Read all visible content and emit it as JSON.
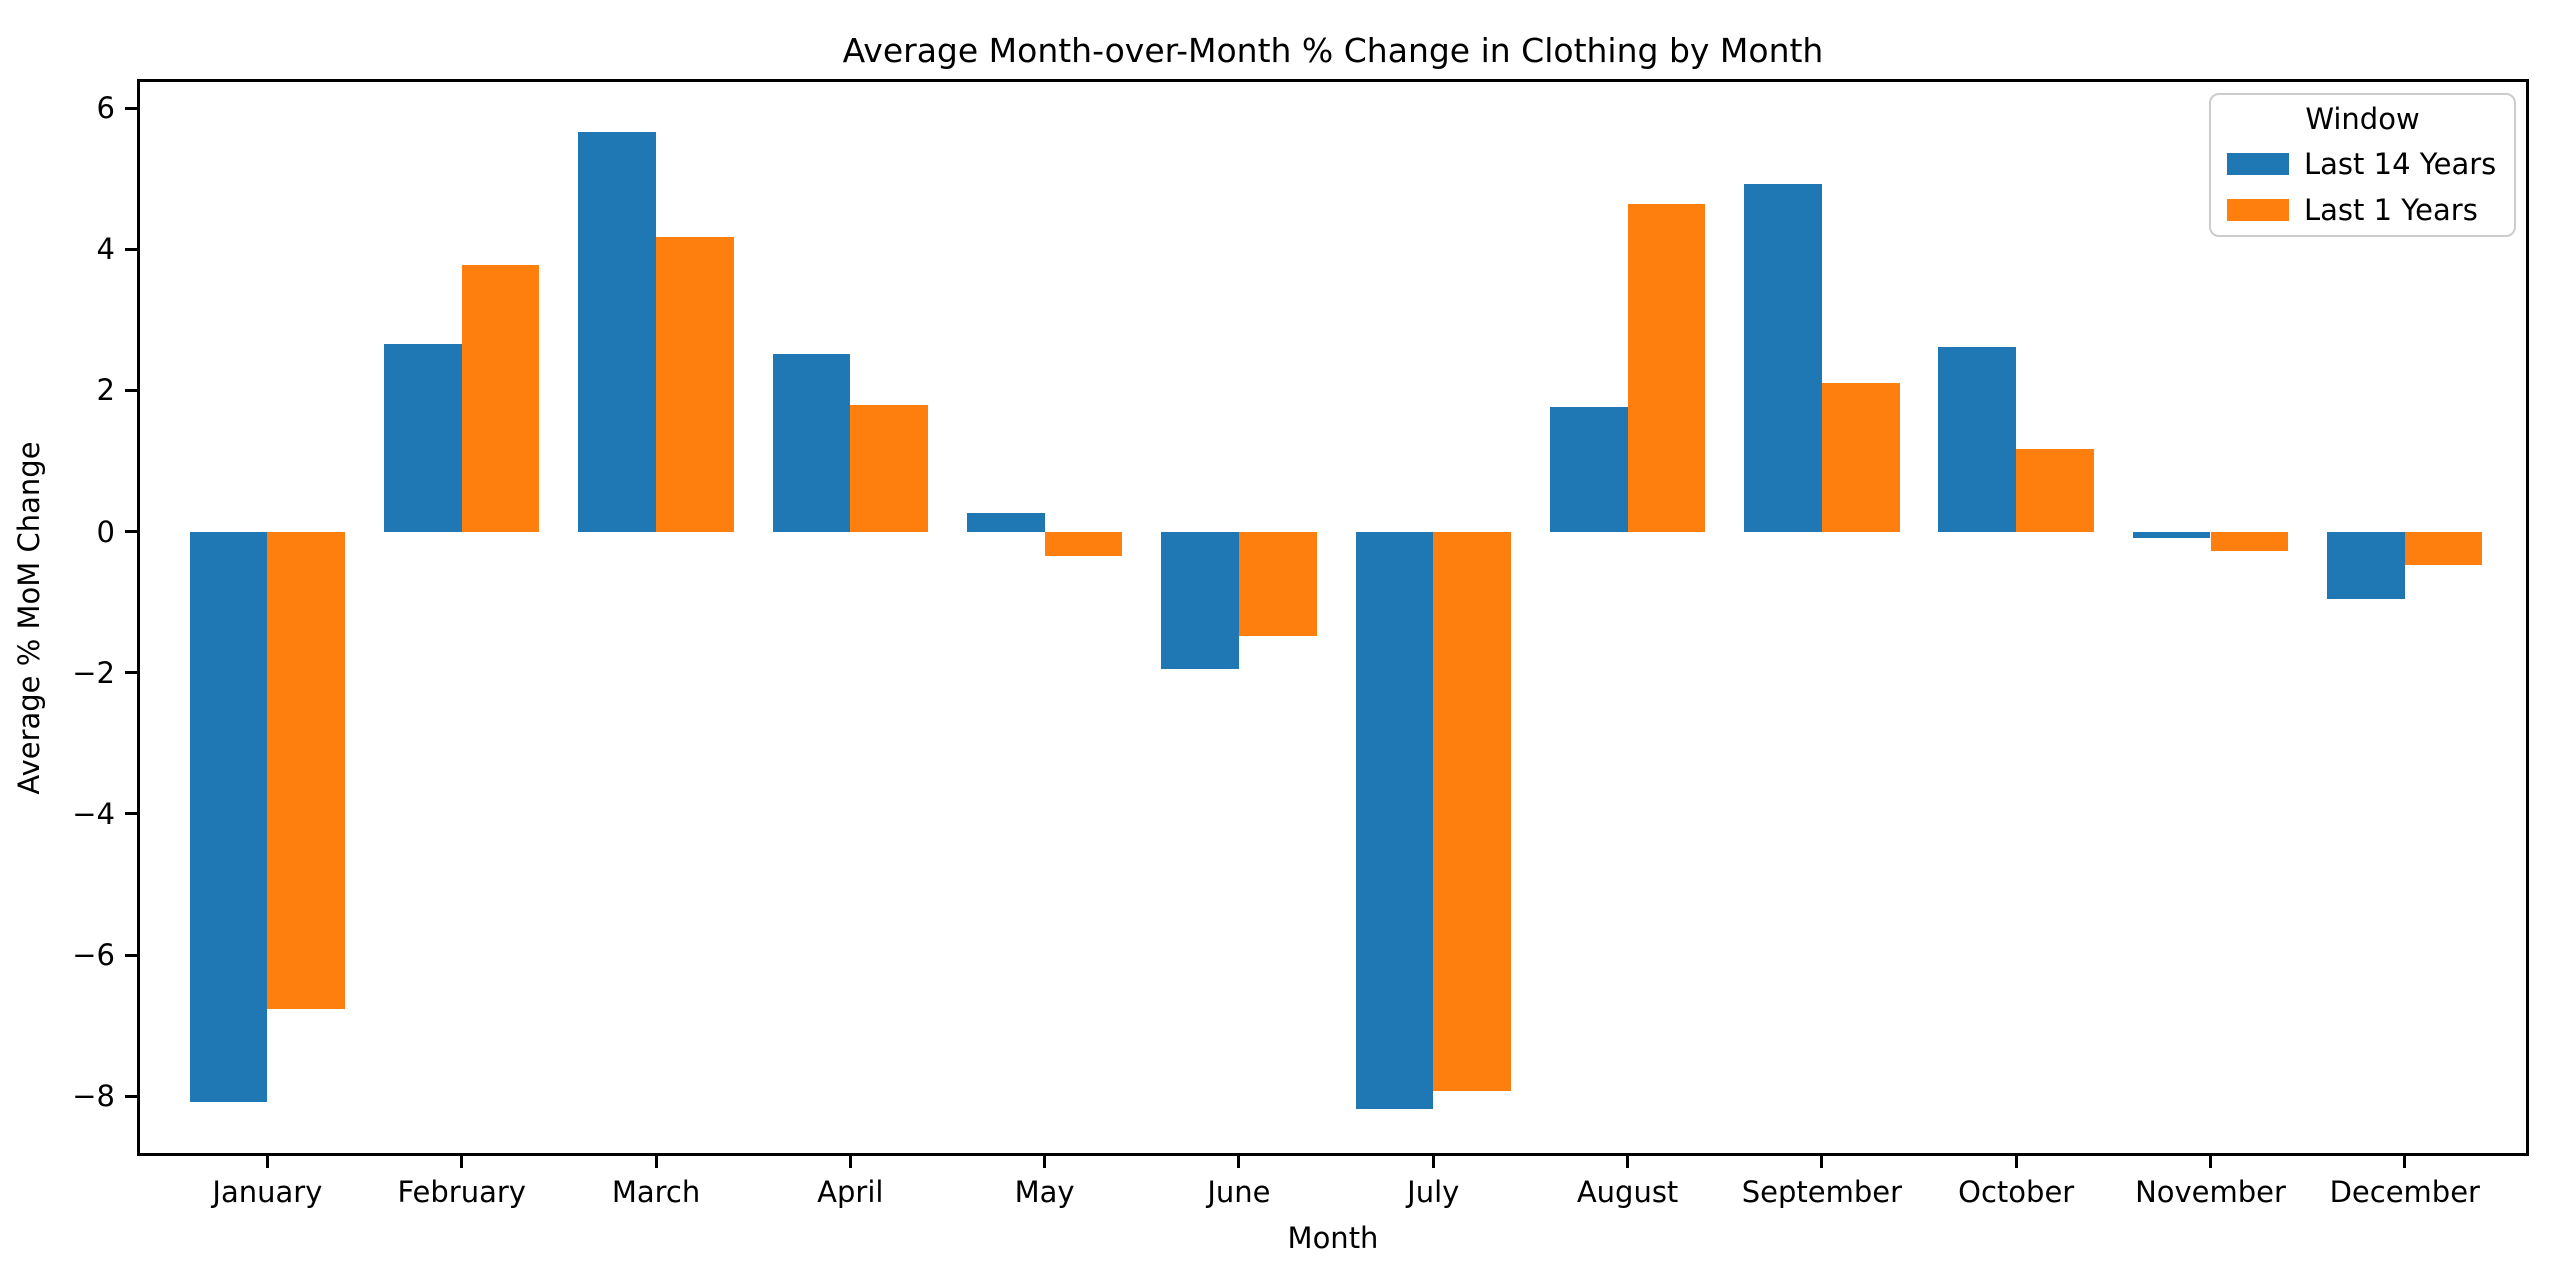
{
  "chart_data": {
    "type": "bar",
    "title": "Average Month-over-Month % Change in Clothing by Month",
    "xlabel": "Month",
    "ylabel": "Average % MoM Change",
    "categories": [
      "January",
      "February",
      "March",
      "April",
      "May",
      "June",
      "July",
      "August",
      "September",
      "October",
      "November",
      "December"
    ],
    "series": [
      {
        "name": "Last 14 Years",
        "color": "#1f77b4",
        "values": [
          -8.08,
          2.66,
          5.66,
          2.52,
          0.27,
          -1.95,
          -8.18,
          1.77,
          4.93,
          2.62,
          -0.09,
          -0.96
        ]
      },
      {
        "name": "Last 1 Years",
        "color": "#ff7f0e",
        "values": [
          -6.76,
          3.77,
          4.17,
          1.8,
          -0.35,
          -1.48,
          -7.93,
          4.64,
          2.11,
          1.17,
          -0.28,
          -0.47
        ]
      }
    ],
    "ylim": [
      -8.89,
      6.37
    ],
    "yticks": [
      6,
      4,
      2,
      0,
      -2,
      -4,
      -6,
      -8
    ],
    "ytick_labels": [
      "6",
      "4",
      "2",
      "0",
      "−2",
      "−4",
      "−6",
      "−8"
    ],
    "grid": false,
    "legend_position": "upper right",
    "legend_title": "Window",
    "bar_group": "grouped",
    "background": "#ffffff",
    "axis_color": "#000000",
    "legend_border_color": "#cccccc"
  }
}
